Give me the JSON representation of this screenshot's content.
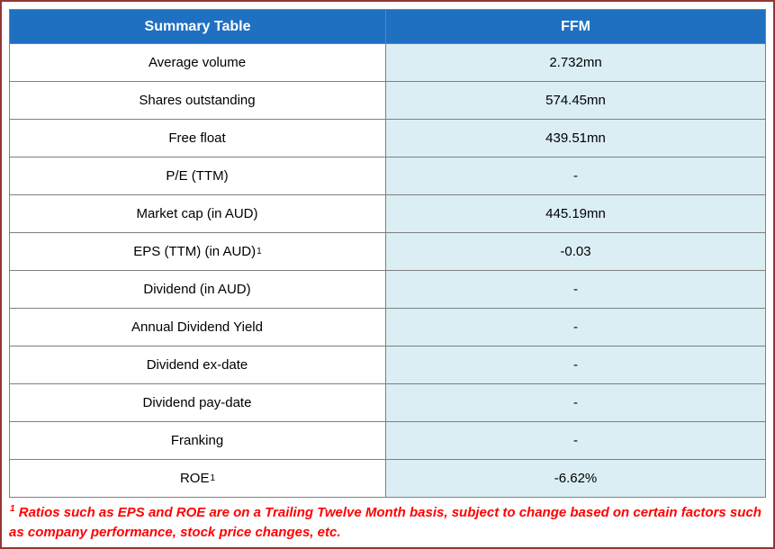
{
  "colors": {
    "header_bg": "#1f70c1",
    "value_cell_bg": "#daeef3",
    "grid_border": "#7f7f7f",
    "outer_border": "#943634",
    "footnote_text": "#ff0000"
  },
  "table": {
    "header": {
      "col1": "Summary Table",
      "col2": "FFM"
    },
    "rows": [
      {
        "label": "Average volume",
        "value": "2.732mn"
      },
      {
        "label": "Shares outstanding",
        "value": "574.45mn"
      },
      {
        "label": "Free float",
        "value": "439.51mn"
      },
      {
        "label": "P/E (TTM)",
        "value": "-"
      },
      {
        "label": "Market cap (in AUD)",
        "value": "445.19mn"
      },
      {
        "label": "EPS (TTM) (in AUD)",
        "sup": "1",
        "value": "-0.03"
      },
      {
        "label": "Dividend (in AUD)",
        "value": "-"
      },
      {
        "label": "Annual Dividend Yield",
        "value": "-"
      },
      {
        "label": "Dividend ex-date",
        "value": "-"
      },
      {
        "label": "Dividend pay-date",
        "value": "-"
      },
      {
        "label": "Franking",
        "value": "-"
      },
      {
        "label": "ROE",
        "sup": "1",
        "value": "-6.62%"
      }
    ]
  },
  "footnote": {
    "sup": "1",
    "text": " Ratios such as  EPS and ROE are on a Trailing Twelve Month basis, subject to change based on certain factors such as company performance, stock price changes, etc."
  },
  "chart_data": {
    "type": "table",
    "title": "Summary Table",
    "columns": [
      "Summary Table",
      "FFM"
    ],
    "rows": [
      [
        "Average volume",
        "2.732mn"
      ],
      [
        "Shares outstanding",
        "574.45mn"
      ],
      [
        "Free float",
        "439.51mn"
      ],
      [
        "P/E (TTM)",
        "-"
      ],
      [
        "Market cap (in AUD)",
        "445.19mn"
      ],
      [
        "EPS (TTM) (in AUD)^1",
        "-0.03"
      ],
      [
        "Dividend (in AUD)",
        "-"
      ],
      [
        "Annual Dividend Yield",
        "-"
      ],
      [
        "Dividend ex-date",
        "-"
      ],
      [
        "Dividend pay-date",
        "-"
      ],
      [
        "Franking",
        "-"
      ],
      [
        "ROE^1",
        "-6.62%"
      ]
    ],
    "footnote": "1 Ratios such as EPS and ROE are on a Trailing Twelve Month basis, subject to change based on certain factors such as company performance, stock price changes, etc."
  }
}
